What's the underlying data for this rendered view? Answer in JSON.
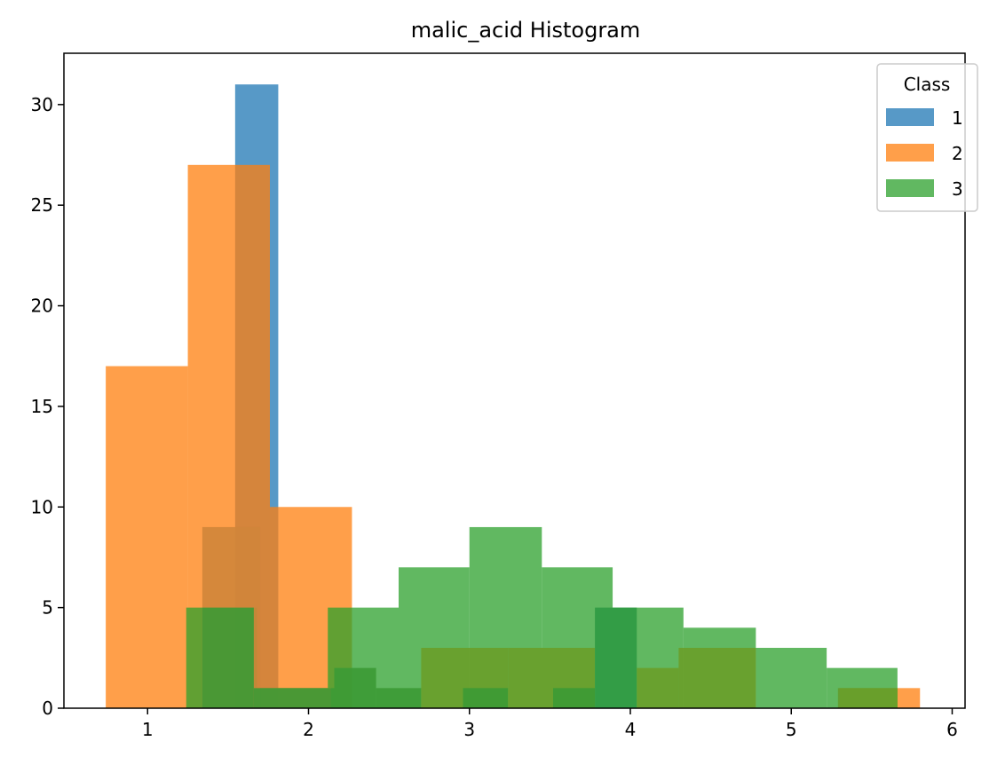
{
  "chart_data": {
    "type": "histogram",
    "title": "malic_acid Histogram",
    "xlabel": "",
    "ylabel": "",
    "xlim": [
      0.48,
      6.08
    ],
    "ylim": [
      0,
      32.55
    ],
    "x_ticks": [
      1,
      2,
      3,
      4,
      5,
      6
    ],
    "y_ticks": [
      0,
      5,
      10,
      15,
      20,
      25,
      30
    ],
    "grid": false,
    "legend": {
      "title": "Class",
      "placement": "top-right"
    },
    "series": [
      {
        "name": "1",
        "color": "#1f77b4",
        "alpha": 0.75,
        "bin_edges": [
          0.74,
          1.008,
          1.276,
          1.544,
          1.812,
          2.08,
          2.348,
          2.616,
          2.884,
          3.152,
          3.42,
          3.688,
          3.956,
          4.224,
          4.492,
          4.76,
          5.028,
          5.296,
          5.564,
          5.8
        ],
        "counts": [
          0,
          0,
          0,
          31,
          0,
          0,
          0,
          0,
          0,
          0,
          0,
          0,
          0,
          0,
          0,
          0,
          0,
          0,
          0
        ]
      },
      {
        "name": "2",
        "color": "#ff7f0e",
        "alpha": 0.75,
        "bin_edges": [
          0.74,
          1.25,
          1.76,
          2.27,
          2.78,
          3.29,
          3.8,
          4.31,
          4.8,
          5.29,
          5.8
        ],
        "counts": [
          17,
          27,
          10,
          0,
          0,
          0,
          0,
          0,
          0,
          1
        ]
      },
      {
        "name": "3",
        "color": "#2ca02c",
        "alpha": 0.75,
        "bin_edges": [
          1.24,
          1.68,
          2.12,
          2.56,
          3.0,
          3.45,
          3.89,
          4.33,
          4.78,
          5.22,
          5.66
        ],
        "counts": [
          5,
          1,
          5,
          7,
          9,
          7,
          5,
          4,
          3,
          2
        ]
      }
    ],
    "overlay_bars": [
      {
        "x0": 1.34,
        "x1": 1.7,
        "y": 9,
        "color": "#d0853a"
      },
      {
        "x0": 1.7,
        "x1": 2.14,
        "y": 1,
        "color": "#d0853a"
      },
      {
        "x0": 1.34,
        "x1": 1.66,
        "y": 5,
        "color": "#3c9a35"
      },
      {
        "x0": 1.66,
        "x1": 2.16,
        "y": 1,
        "color": "#3c9a35"
      },
      {
        "x0": 2.16,
        "x1": 2.42,
        "y": 2,
        "color": "#3c9a35"
      },
      {
        "x0": 2.42,
        "x1": 2.7,
        "y": 1,
        "color": "#3c9a35"
      },
      {
        "x0": 2.7,
        "x1": 2.96,
        "y": 3,
        "color": "#6a9e2a"
      },
      {
        "x0": 2.96,
        "x1": 3.24,
        "y": 3,
        "color": "#6a9e2a"
      },
      {
        "x0": 2.96,
        "x1": 3.24,
        "y": 1,
        "color": "#3c9a35"
      },
      {
        "x0": 3.24,
        "x1": 3.52,
        "y": 3,
        "color": "#6a9e2a"
      },
      {
        "x0": 3.52,
        "x1": 3.78,
        "y": 3,
        "color": "#6a9e2a"
      },
      {
        "x0": 3.52,
        "x1": 3.78,
        "y": 1,
        "color": "#3c9a35"
      },
      {
        "x0": 3.78,
        "x1": 4.04,
        "y": 5,
        "color": "#2f9a44"
      },
      {
        "x0": 4.04,
        "x1": 4.3,
        "y": 2,
        "color": "#6a9e2a"
      },
      {
        "x0": 4.3,
        "x1": 4.78,
        "y": 3,
        "color": "#6a9e2a"
      },
      {
        "x0": 5.3,
        "x1": 5.66,
        "y": 1,
        "color": "#6a9e2a"
      }
    ]
  }
}
